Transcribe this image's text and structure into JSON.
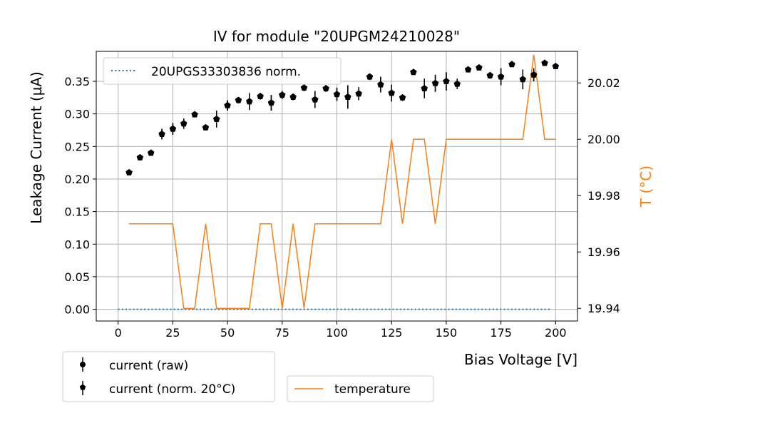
{
  "chart_data": {
    "type": "scatter",
    "title": "IV for module \"20UPGM24210028\"",
    "xlabel": "Bias Voltage [V]",
    "ylabel": "Leakage Current (µA)",
    "y2label": "T (°C)",
    "xlim": [
      -10,
      210
    ],
    "ylim": [
      -0.018,
      0.396
    ],
    "y2lim": [
      19.9355,
      20.0312
    ],
    "xticks": [
      0,
      25,
      50,
      75,
      100,
      125,
      150,
      175,
      200
    ],
    "xtick_labels": [
      "0",
      "25",
      "50",
      "75",
      "100",
      "125",
      "150",
      "175",
      "200"
    ],
    "yticks": [
      0.0,
      0.05,
      0.1,
      0.15,
      0.2,
      0.25,
      0.3,
      0.35
    ],
    "ytick_labels": [
      "0.00",
      "0.05",
      "0.10",
      "0.15",
      "0.20",
      "0.25",
      "0.30",
      "0.35"
    ],
    "y2ticks": [
      19.94,
      19.96,
      19.98,
      20.0,
      20.02
    ],
    "y2tick_labels": [
      "19.94",
      "19.96",
      "19.98",
      "20.00",
      "20.02"
    ],
    "grid": true,
    "colors": {
      "current": "#000000",
      "norm": "#1f77b4",
      "temperature": "#ff7f0e"
    },
    "legends": {
      "top": [
        {
          "label": "20UPGS33303836 norm.",
          "style": "dotted"
        }
      ],
      "bottom_left": [
        {
          "label": "current (raw)",
          "marker": "circle"
        },
        {
          "label": "current (norm. 20$^\\circ$C)",
          "display": "current (norm. 20°C)",
          "marker": "pentagon"
        }
      ],
      "bottom_right": [
        {
          "label": "temperature",
          "style": "line"
        }
      ]
    },
    "x": [
      5,
      10,
      15,
      20,
      25,
      30,
      35,
      40,
      45,
      50,
      55,
      60,
      65,
      70,
      75,
      80,
      85,
      90,
      95,
      100,
      105,
      110,
      115,
      120,
      125,
      130,
      135,
      140,
      145,
      150,
      155,
      160,
      165,
      170,
      175,
      180,
      185,
      190,
      195,
      200
    ],
    "series": [
      {
        "name": "current (raw)",
        "values": [
          0.21,
          0.233,
          0.24,
          0.269,
          0.277,
          0.285,
          0.299,
          0.279,
          0.292,
          0.313,
          0.321,
          0.319,
          0.327,
          0.317,
          0.329,
          0.326,
          0.34,
          0.322,
          0.339,
          0.33,
          0.326,
          0.331,
          0.357,
          0.345,
          0.332,
          0.325,
          0.364,
          0.339,
          0.347,
          0.35,
          0.346,
          0.368,
          0.371,
          0.359,
          0.357,
          0.376,
          0.353,
          0.36,
          0.378,
          0.373
        ],
        "errors": [
          0.004,
          0.004,
          0.004,
          0.008,
          0.009,
          0.008,
          0.004,
          0.004,
          0.013,
          0.008,
          0.005,
          0.013,
          0.005,
          0.012,
          0.006,
          0.005,
          0.005,
          0.013,
          0.005,
          0.01,
          0.018,
          0.01,
          0.005,
          0.012,
          0.013,
          0.005,
          0.004,
          0.015,
          0.013,
          0.014,
          0.008,
          0.004,
          0.004,
          0.005,
          0.013,
          0.004,
          0.015,
          0.01,
          0.004,
          0.004
        ]
      },
      {
        "name": "current (norm. 20°C)",
        "values": [
          0.21,
          0.233,
          0.24,
          0.269,
          0.277,
          0.285,
          0.299,
          0.279,
          0.292,
          0.313,
          0.321,
          0.319,
          0.327,
          0.317,
          0.329,
          0.326,
          0.34,
          0.322,
          0.339,
          0.33,
          0.326,
          0.331,
          0.357,
          0.345,
          0.332,
          0.325,
          0.364,
          0.339,
          0.347,
          0.35,
          0.346,
          0.368,
          0.371,
          0.359,
          0.357,
          0.376,
          0.353,
          0.36,
          0.378,
          0.373
        ],
        "errors": [
          0.004,
          0.004,
          0.004,
          0.008,
          0.009,
          0.008,
          0.004,
          0.004,
          0.013,
          0.008,
          0.005,
          0.013,
          0.005,
          0.012,
          0.006,
          0.005,
          0.005,
          0.013,
          0.005,
          0.01,
          0.018,
          0.01,
          0.005,
          0.012,
          0.013,
          0.005,
          0.004,
          0.015,
          0.013,
          0.014,
          0.008,
          0.004,
          0.004,
          0.005,
          0.013,
          0.004,
          0.015,
          0.01,
          0.004,
          0.004
        ]
      },
      {
        "name": "20UPGS33303836 norm.",
        "x_range": [
          0,
          198
        ],
        "step": 2,
        "constant": 0.0
      },
      {
        "name": "temperature",
        "axis": "right",
        "values": [
          19.97,
          19.97,
          19.97,
          19.97,
          19.97,
          19.94,
          19.94,
          19.97,
          19.94,
          19.94,
          19.94,
          19.94,
          19.97,
          19.97,
          19.94,
          19.97,
          19.94,
          19.97,
          19.97,
          19.97,
          19.97,
          19.97,
          19.97,
          19.97,
          20.0,
          19.97,
          20.0,
          20.0,
          19.97,
          20.0,
          20.0,
          20.0,
          20.0,
          20.0,
          20.0,
          20.0,
          20.0,
          20.03,
          20.0,
          20.0
        ]
      }
    ]
  }
}
